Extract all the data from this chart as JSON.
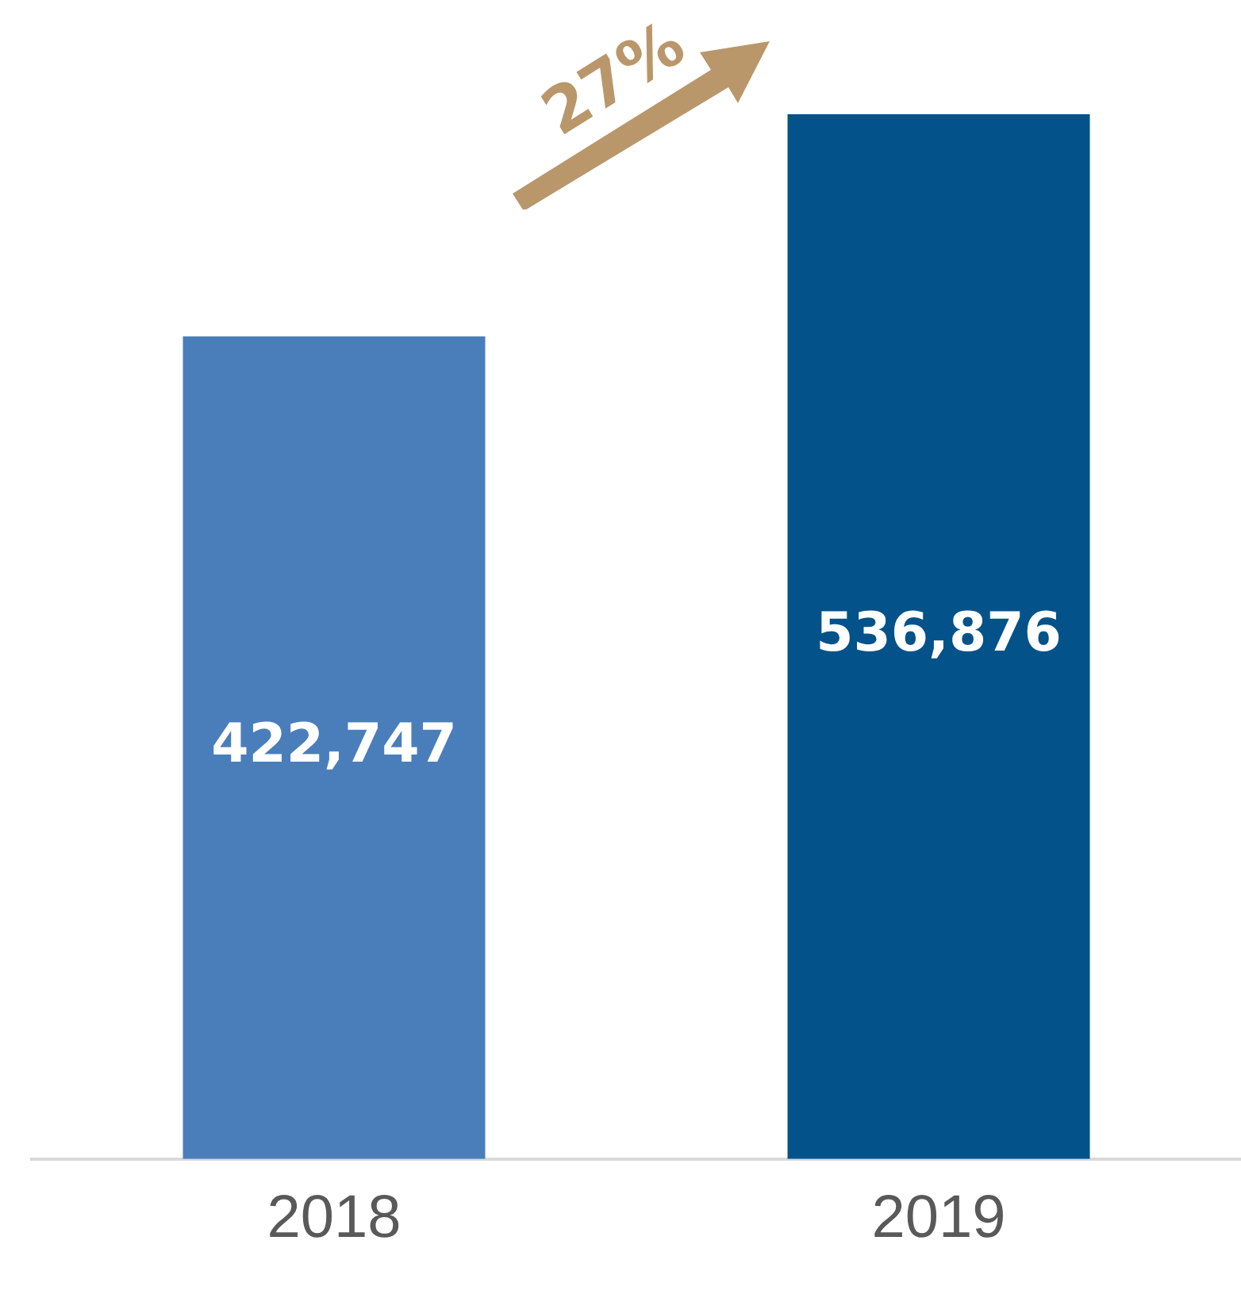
{
  "chart_data": {
    "type": "bar",
    "categories": [
      "2018",
      "2019"
    ],
    "colors": [
      "#4a7ebb",
      "#03528a"
    ],
    "values": [
      422747,
      536876
    ],
    "data_labels": true,
    "value_labels": [
      "422,747",
      "536,876"
    ],
    "grid": false,
    "legend": false,
    "tick_labels": "x",
    "annotations": [
      "27%"
    ]
  }
}
